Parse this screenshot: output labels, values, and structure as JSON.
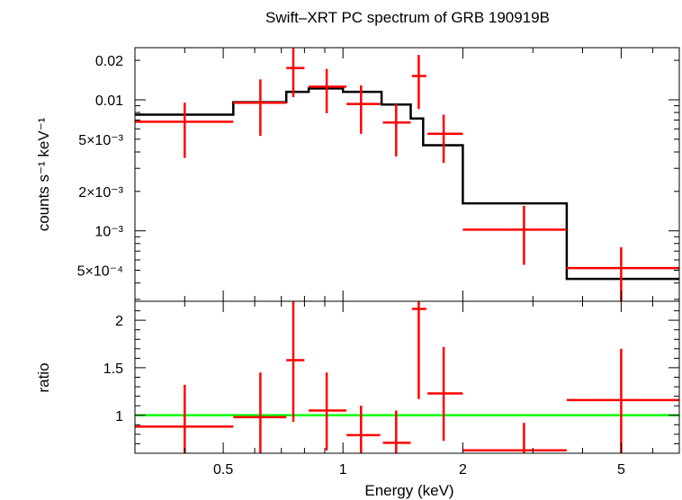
{
  "chart_data": [
    {
      "type": "errorbar-step",
      "title": "Swift–XRT PC spectrum of GRB 190919B",
      "ylabel": "counts s⁻¹ keV⁻¹",
      "xlabel": "",
      "xscale": "log",
      "yscale": "log",
      "xlim": [
        0.3,
        7.0
      ],
      "ylim": [
        0.00029,
        0.025
      ],
      "ytick_labels": [
        {
          "value": 0.02,
          "label": "0.02"
        },
        {
          "value": 0.01,
          "label": "0.01"
        },
        {
          "value": 0.005,
          "label": "5×10⁻³"
        },
        {
          "value": 0.002,
          "label": "2×10⁻³"
        },
        {
          "value": 0.001,
          "label": "10⁻³"
        },
        {
          "value": 0.0005,
          "label": "5×10⁻⁴"
        }
      ],
      "data_series": {
        "name": "data",
        "color": "#ff0000",
        "points": [
          {
            "x": 0.4,
            "xlo": 0.3,
            "xhi": 0.53,
            "y": 0.0068,
            "ylo": 0.0036,
            "yhi": 0.0095
          },
          {
            "x": 0.62,
            "xlo": 0.53,
            "xhi": 0.72,
            "y": 0.0095,
            "ylo": 0.0053,
            "yhi": 0.0143
          },
          {
            "x": 0.75,
            "xlo": 0.72,
            "xhi": 0.8,
            "y": 0.0175,
            "ylo": 0.0105,
            "yhi": 0.025
          },
          {
            "x": 0.91,
            "xlo": 0.82,
            "xhi": 1.02,
            "y": 0.0126,
            "ylo": 0.0079,
            "yhi": 0.0172
          },
          {
            "x": 1.11,
            "xlo": 1.02,
            "xhi": 1.24,
            "y": 0.0093,
            "ylo": 0.0055,
            "yhi": 0.0129
          },
          {
            "x": 1.36,
            "xlo": 1.26,
            "xhi": 1.48,
            "y": 0.0067,
            "ylo": 0.0037,
            "yhi": 0.0093
          },
          {
            "x": 1.55,
            "xlo": 1.49,
            "xhi": 1.62,
            "y": 0.0152,
            "ylo": 0.0085,
            "yhi": 0.022
          },
          {
            "x": 1.79,
            "xlo": 1.63,
            "xhi": 2.0,
            "y": 0.0055,
            "ylo": 0.0033,
            "yhi": 0.0077
          },
          {
            "x": 2.85,
            "xlo": 2.0,
            "xhi": 3.65,
            "y": 0.00102,
            "ylo": 0.00055,
            "yhi": 0.00155
          },
          {
            "x": 5.0,
            "xlo": 3.65,
            "xhi": 7.0,
            "y": 0.00052,
            "ylo": 0.00029,
            "yhi": 0.00075
          }
        ]
      },
      "model_series": {
        "name": "model",
        "color": "#000000",
        "steps": [
          {
            "xlo": 0.3,
            "xhi": 0.53,
            "y": 0.0077
          },
          {
            "xlo": 0.53,
            "xhi": 0.72,
            "y": 0.0096
          },
          {
            "xlo": 0.72,
            "xhi": 0.82,
            "y": 0.0115
          },
          {
            "xlo": 0.82,
            "xhi": 1.0,
            "y": 0.0122
          },
          {
            "xlo": 1.0,
            "xhi": 1.25,
            "y": 0.0115
          },
          {
            "xlo": 1.25,
            "xhi": 1.48,
            "y": 0.0092
          },
          {
            "xlo": 1.48,
            "xhi": 1.59,
            "y": 0.0072
          },
          {
            "xlo": 1.59,
            "xhi": 2.0,
            "y": 0.0045
          },
          {
            "xlo": 2.0,
            "xhi": 3.65,
            "y": 0.00162
          },
          {
            "xlo": 3.65,
            "xhi": 7.0,
            "y": 0.00043
          }
        ]
      }
    },
    {
      "type": "errorbar",
      "title": "",
      "ylabel": "ratio",
      "xlabel": "Energy (keV)",
      "xscale": "log",
      "yscale": "linear",
      "xlim": [
        0.3,
        7.0
      ],
      "ylim": [
        0.6,
        2.2
      ],
      "xtick_labels": [
        {
          "value": 0.5,
          "label": "0.5"
        },
        {
          "value": 1,
          "label": "1"
        },
        {
          "value": 2,
          "label": "2"
        },
        {
          "value": 5,
          "label": "5"
        }
      ],
      "ytick_labels": [
        {
          "value": 1,
          "label": "1"
        },
        {
          "value": 1.5,
          "label": "1.5"
        },
        {
          "value": 2,
          "label": "2"
        }
      ],
      "reference_line": {
        "y": 1.0,
        "color": "#00ff00"
      },
      "data_series": {
        "name": "ratio",
        "color": "#ff0000",
        "points": [
          {
            "x": 0.4,
            "xlo": 0.3,
            "xhi": 0.53,
            "y": 0.88,
            "ylo": 0.6,
            "yhi": 1.32
          },
          {
            "x": 0.62,
            "xlo": 0.53,
            "xhi": 0.72,
            "y": 0.98,
            "ylo": 0.6,
            "yhi": 1.45
          },
          {
            "x": 0.75,
            "xlo": 0.72,
            "xhi": 0.8,
            "y": 1.58,
            "ylo": 0.93,
            "yhi": 2.2
          },
          {
            "x": 0.91,
            "xlo": 0.82,
            "xhi": 1.02,
            "y": 1.05,
            "ylo": 0.63,
            "yhi": 1.45
          },
          {
            "x": 1.11,
            "xlo": 1.02,
            "xhi": 1.24,
            "y": 0.79,
            "ylo": 0.6,
            "yhi": 1.1
          },
          {
            "x": 1.36,
            "xlo": 1.26,
            "xhi": 1.48,
            "y": 0.71,
            "ylo": 0.6,
            "yhi": 1.05
          },
          {
            "x": 1.55,
            "xlo": 1.49,
            "xhi": 1.62,
            "y": 2.12,
            "ylo": 1.17,
            "yhi": 2.2
          },
          {
            "x": 1.79,
            "xlo": 1.63,
            "xhi": 2.0,
            "y": 1.23,
            "ylo": 0.73,
            "yhi": 1.72
          },
          {
            "x": 2.85,
            "xlo": 2.0,
            "xhi": 3.65,
            "y": 0.63,
            "ylo": 0.6,
            "yhi": 0.92
          },
          {
            "x": 5.0,
            "xlo": 3.65,
            "xhi": 7.0,
            "y": 1.16,
            "ylo": 0.6,
            "yhi": 1.7
          }
        ]
      }
    }
  ]
}
